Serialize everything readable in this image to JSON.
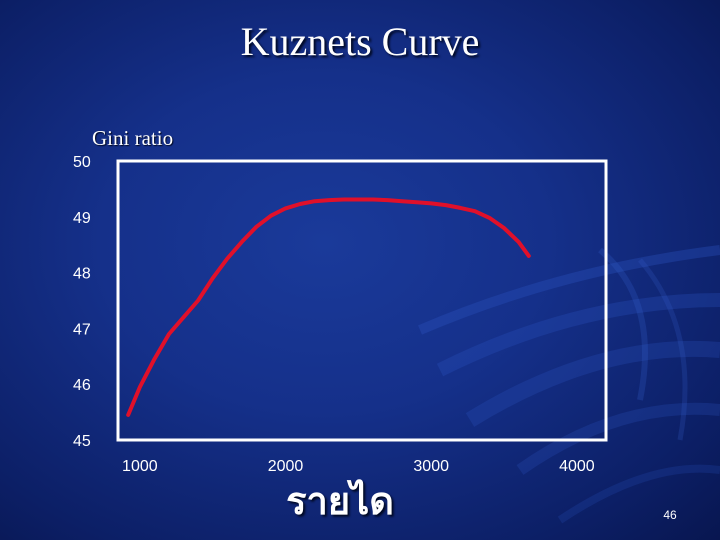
{
  "slide": {
    "title": "Kuznets Curve",
    "page_number": "46"
  },
  "colors": {
    "background": "#15308a",
    "curve": "#e0102a",
    "frame": "#ffffff",
    "text": "#ffffff"
  },
  "chart_data": {
    "type": "line",
    "title": "Kuznets Curve",
    "ylabel": "Gini ratio",
    "xlabel": "รายได",
    "ylim": [
      45,
      50
    ],
    "xlim": [
      850,
      4200
    ],
    "y_ticks": [
      50,
      49,
      48,
      47,
      46,
      45
    ],
    "x_ticks": [
      1000,
      2000,
      3000,
      4000
    ],
    "grid": false,
    "legend": "none",
    "series": [
      {
        "x": [
          920,
          1000,
          1100,
          1200,
          1300,
          1400,
          1500,
          1600,
          1700,
          1800,
          1900,
          2000,
          2100,
          2200,
          2300,
          2400,
          2500,
          2600,
          2700,
          2800,
          2900,
          3000,
          3100,
          3200,
          3300,
          3400,
          3500,
          3600,
          3670
        ],
        "y": [
          45.45,
          45.95,
          46.45,
          46.9,
          47.2,
          47.5,
          47.9,
          48.25,
          48.55,
          48.82,
          49.02,
          49.15,
          49.23,
          49.28,
          49.3,
          49.31,
          49.31,
          49.31,
          49.3,
          49.28,
          49.26,
          49.24,
          49.21,
          49.16,
          49.1,
          48.98,
          48.8,
          48.55,
          48.3
        ]
      }
    ]
  }
}
